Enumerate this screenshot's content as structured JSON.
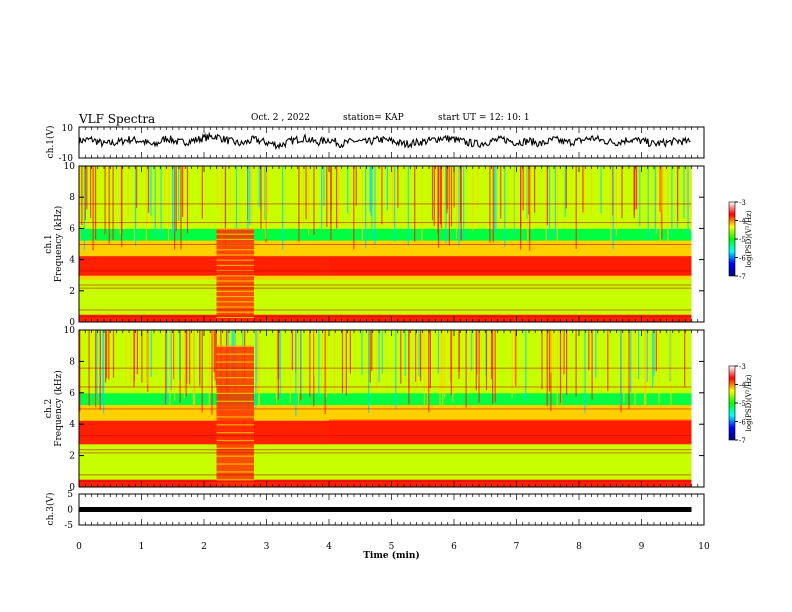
{
  "header": {
    "title": "VLF Spectra",
    "date": "Oct. 2 , 2022",
    "station": "station= KAP",
    "start": "start UT = 12: 10: 1"
  },
  "colors": {
    "ink": "#000000",
    "colormap": [
      "#000080",
      "#0000ff",
      "#00ffff",
      "#00ff00",
      "#ffff00",
      "#ff0000",
      "#ffffff"
    ]
  },
  "chart_data": [
    {
      "type": "line",
      "name": "ch1-waveform",
      "ylabel": "ch.1(V)",
      "ylim": [
        -10,
        10
      ],
      "y_ticks": [
        "10",
        "-10"
      ],
      "x": [
        0,
        0.2,
        0.4,
        0.6,
        0.8,
        1.0,
        1.2,
        1.4,
        1.6,
        1.8,
        2.0,
        2.2,
        2.4,
        2.6,
        2.8,
        3.0,
        3.2,
        3.4,
        3.6,
        3.8,
        4.0,
        4.2,
        4.4,
        4.6,
        4.8,
        5.0,
        5.2,
        5.4,
        5.6,
        5.8,
        6.0,
        6.2,
        6.4,
        6.6,
        6.8,
        7.0,
        7.2,
        7.4,
        7.6,
        7.8,
        8.0,
        8.2,
        8.4,
        8.6,
        8.8,
        9.0,
        9.2,
        9.4,
        9.6,
        9.8
      ],
      "values": [
        1,
        2,
        -1,
        0,
        2,
        1,
        -2,
        3,
        0,
        1,
        3,
        4,
        1,
        -1,
        2,
        0,
        -2,
        1,
        3,
        0,
        2,
        -1,
        1,
        0,
        2,
        1,
        -1,
        0,
        1,
        3,
        2,
        0,
        -1,
        1,
        2,
        0,
        1,
        -1,
        2,
        0,
        1,
        3,
        1,
        0,
        2,
        1,
        -1,
        0,
        1,
        0
      ]
    },
    {
      "type": "heatmap",
      "name": "ch1-spectrogram",
      "ylabel": "ch.1\nFrequency (kHz)",
      "ylim": [
        0,
        10
      ],
      "xlim": [
        0,
        10
      ],
      "y_ticks": [
        "0",
        "2",
        "4",
        "6",
        "8",
        "10"
      ],
      "colorbar": {
        "label": "log(PSD)(V²/Hz)",
        "range": [
          -7,
          -3
        ],
        "ticks": [
          "-3",
          "-4",
          "-5",
          "-6",
          "-7"
        ]
      },
      "features": {
        "hot_band_khz": [
          3.0,
          4.2
        ],
        "burst_min": [
          2.2,
          2.8
        ],
        "data_end_min": 9.8
      }
    },
    {
      "type": "heatmap",
      "name": "ch2-spectrogram",
      "ylabel": "ch.2\nFrequency (kHz)",
      "ylim": [
        0,
        10
      ],
      "xlim": [
        0,
        10
      ],
      "y_ticks": [
        "0",
        "2",
        "4",
        "6",
        "8",
        "10"
      ],
      "colorbar": {
        "label": "log(PSD)(V²/Hz)",
        "range": [
          -7,
          -3
        ],
        "ticks": [
          "-3",
          "-4",
          "-5",
          "-6",
          "-7"
        ]
      },
      "features": {
        "hot_band_khz": [
          2.8,
          4.3
        ],
        "burst_min": [
          2.2,
          2.8
        ],
        "data_end_min": 9.8
      }
    },
    {
      "type": "line",
      "name": "ch3-waveform",
      "ylabel": "ch.3(V)",
      "ylim": [
        -5,
        5
      ],
      "y_ticks": [
        "5",
        "0",
        "-5"
      ],
      "x": [
        0,
        9.8
      ],
      "values": [
        0,
        0
      ],
      "xlabel": "Time (min)",
      "x_ticks": [
        "0",
        "1",
        "2",
        "3",
        "4",
        "5",
        "6",
        "7",
        "8",
        "9",
        "10"
      ]
    }
  ]
}
